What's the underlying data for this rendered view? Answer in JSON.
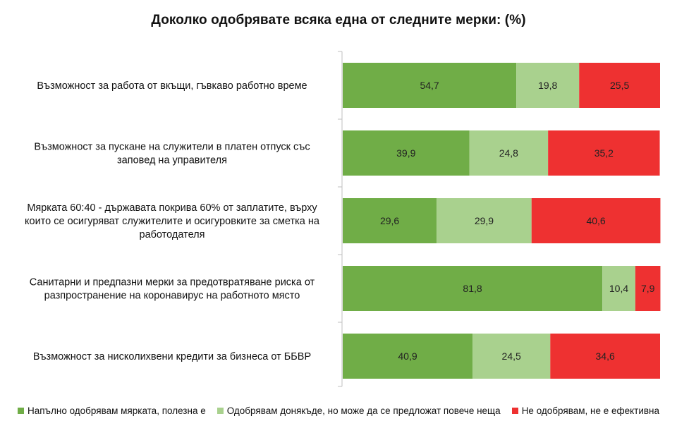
{
  "chart_data": {
    "type": "bar",
    "orientation": "horizontal",
    "stacked": true,
    "title": "Доколко одобрявате всяка една от следните мерки: (%)",
    "categories": [
      [
        "Възможност за работа от вкъщи, гъвкаво работно време"
      ],
      [
        "Възможност за пускане на служители в платен отпуск със",
        "заповед на управителя"
      ],
      [
        "Мярката 60:40 - държавата покрива 60% от заплатите, върху",
        "които се осигуряват служителите и осигуровките за сметка на",
        "работодателя"
      ],
      [
        "Санитарни и предпазни мерки за предотвратяване риска от",
        "разпространение на коронавирус на работното място"
      ],
      [
        "Възможност за нисколихвени кредити за бизнеса от ББВР"
      ]
    ],
    "series": [
      {
        "name": "Напълно одобрявам мярката, полезна е",
        "color": "#70AD47",
        "values": [
          54.7,
          39.9,
          29.6,
          81.8,
          40.9
        ],
        "labels": [
          "54,7",
          "39,9",
          "29,6",
          "81,8",
          "40,9"
        ]
      },
      {
        "name": "Одобрявам донякъде, но може да се предложат повече неща",
        "color": "#A9D18E",
        "values": [
          19.8,
          24.8,
          29.9,
          10.4,
          24.5
        ],
        "labels": [
          "19,8",
          "24,8",
          "29,9",
          "10,4",
          "24,5"
        ]
      },
      {
        "name": "Не одобрявам, не е ефективна",
        "color": "#EE3131",
        "values": [
          25.5,
          35.2,
          40.6,
          7.9,
          34.6
        ],
        "labels": [
          "25,5",
          "35,2",
          "40,6",
          "7,9",
          "34,6"
        ]
      }
    ],
    "xlim": [
      0,
      100
    ],
    "grid": false,
    "legend_position": "bottom"
  }
}
